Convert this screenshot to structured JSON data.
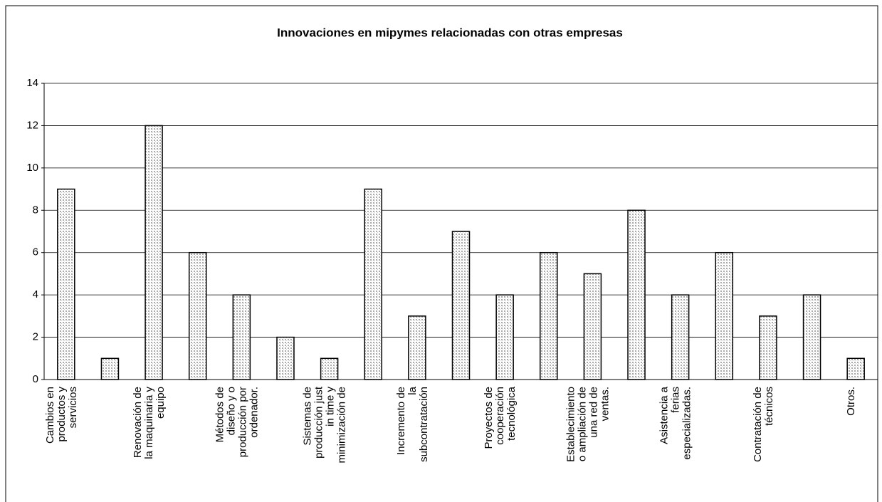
{
  "chart_data": {
    "type": "bar",
    "title": "Innovaciones en mipymes relacionadas con otras empresas",
    "categories": [
      "Cambios en productos y servicios",
      null,
      "Renovación de la maquinaria y equipo",
      null,
      "Métodos de diseño y o producción por ordenador.",
      null,
      "Sistemas de producción just in time y minimización de",
      null,
      "Incremento de la subcontratación",
      null,
      "Proyectos de cooperación tecnológica",
      null,
      "Establecimiento o ampliación de una red de ventas.",
      null,
      "Asistencia a ferias especializadas.",
      null,
      "Contratación de técnicos",
      null,
      "Otros."
    ],
    "values": [
      9,
      1,
      12,
      6,
      4,
      2,
      1,
      9,
      3,
      7,
      4,
      6,
      5,
      8,
      4,
      6,
      3,
      4,
      1
    ],
    "color": "#d8d8d8",
    "ylim": [
      0,
      14
    ],
    "yticks": [
      0,
      2,
      4,
      6,
      8,
      10,
      12,
      14
    ],
    "grid": true
  }
}
